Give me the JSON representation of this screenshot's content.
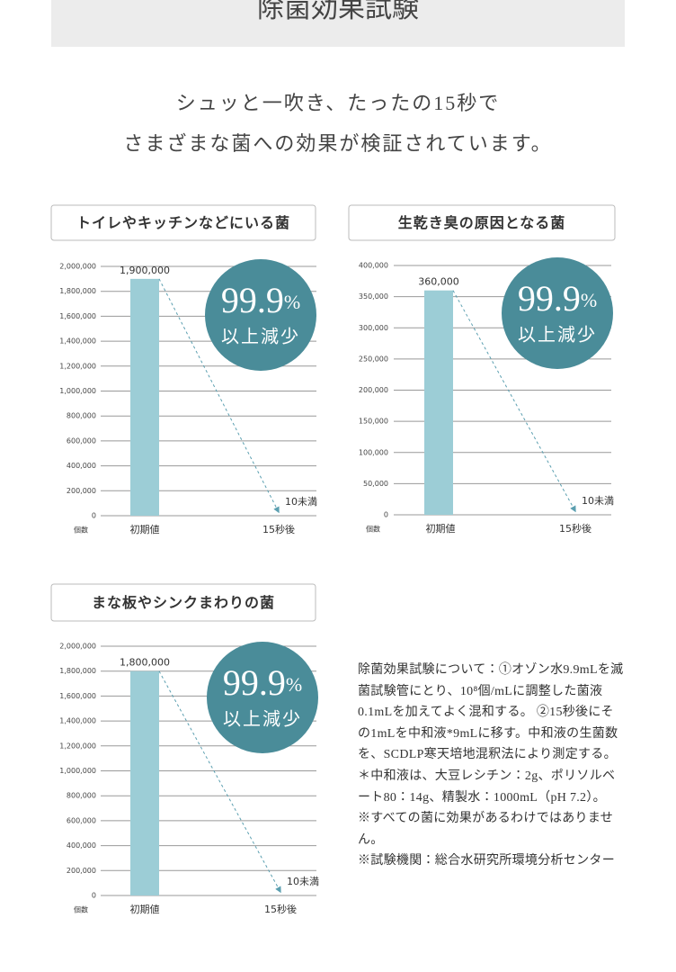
{
  "header": {
    "title": "除菌効果試験"
  },
  "intro": [
    "シュッと一吹き、たったの15秒で",
    "さまざまな菌への効果が検証されています。"
  ],
  "chart_data": [
    {
      "type": "bar",
      "title": "トイレやキッチンなどにいる菌",
      "ylabel": "個数",
      "categories": [
        "初期値",
        "15秒後"
      ],
      "values": [
        1900000,
        10
      ],
      "value_labels": [
        "1,900,000",
        "10未満"
      ],
      "color": "#9ccdd6",
      "grid": true,
      "ylim": [
        0,
        2000000
      ],
      "yticks": [
        {
          "value": 0,
          "label": "0"
        },
        {
          "value": 200000,
          "label": "200,000"
        },
        {
          "value": 400000,
          "label": "400,000"
        },
        {
          "value": 600000,
          "label": "600,000"
        },
        {
          "value": 800000,
          "label": "800,000"
        },
        {
          "value": 1000000,
          "label": "1,000,000"
        },
        {
          "value": 1200000,
          "label": "1,200,000"
        },
        {
          "value": 1400000,
          "label": "1,400,000"
        },
        {
          "value": 1600000,
          "label": "1,600,000"
        },
        {
          "value": 1800000,
          "label": "1,800,000"
        },
        {
          "value": 2000000,
          "label": "2,000,000"
        }
      ],
      "badge_value": "99.9",
      "badge_unit": "%",
      "badge_text": "以上減少",
      "badge_color": "#4a8c99"
    },
    {
      "type": "bar",
      "title": "生乾き臭の原因となる菌",
      "ylabel": "個数",
      "categories": [
        "初期値",
        "15秒後"
      ],
      "values": [
        360000,
        10
      ],
      "value_labels": [
        "360,000",
        "10未満"
      ],
      "color": "#9ccdd6",
      "grid": true,
      "ylim": [
        0,
        400000
      ],
      "yticks": [
        {
          "value": 0,
          "label": "0"
        },
        {
          "value": 50000,
          "label": "50,000"
        },
        {
          "value": 100000,
          "label": "100,000"
        },
        {
          "value": 150000,
          "label": "150,000"
        },
        {
          "value": 200000,
          "label": "200,000"
        },
        {
          "value": 250000,
          "label": "250,000"
        },
        {
          "value": 300000,
          "label": "300,000"
        },
        {
          "value": 350000,
          "label": "350,000"
        },
        {
          "value": 400000,
          "label": "400,000"
        }
      ],
      "badge_value": "99.9",
      "badge_unit": "%",
      "badge_text": "以上減少",
      "badge_color": "#4a8c99"
    },
    {
      "type": "bar",
      "title": "まな板やシンクまわりの菌",
      "ylabel": "個数",
      "categories": [
        "初期値",
        "15秒後"
      ],
      "values": [
        1800000,
        10
      ],
      "value_labels": [
        "1,800,000",
        "10未満"
      ],
      "color": "#9ccdd6",
      "grid": true,
      "ylim": [
        0,
        2000000
      ],
      "yticks": [
        {
          "value": 0,
          "label": "0"
        },
        {
          "value": 200000,
          "label": "200,000"
        },
        {
          "value": 400000,
          "label": "400,000"
        },
        {
          "value": 600000,
          "label": "600,000"
        },
        {
          "value": 800000,
          "label": "800,000"
        },
        {
          "value": 1000000,
          "label": "1,000,000"
        },
        {
          "value": 1200000,
          "label": "1,200,000"
        },
        {
          "value": 1400000,
          "label": "1,400,000"
        },
        {
          "value": 1600000,
          "label": "1,600,000"
        },
        {
          "value": 1800000,
          "label": "1,800,000"
        },
        {
          "value": 2000000,
          "label": "2,000,000"
        }
      ],
      "badge_value": "99.9",
      "badge_unit": "%",
      "badge_text": "以上減少",
      "badge_color": "#4a8c99"
    }
  ],
  "note": [
    "除菌効果試験について：①オゾン水9.9mLを滅菌試験管にとり、10⁸個/mLに調整した菌液0.1mLを加えてよく混和する。 ②15秒後にその1mLを中和液*9mLに移す。中和液の生菌数を、SCDLP寒天培地混釈法により測定する。 ＊中和液は、大豆レシチン：2g、ポリソルベート80：14g、精製水：1000mL（pH 7.2）。",
    "※すべての菌に効果があるわけではありません。",
    "※試験機関：総合水研究所環境分析センター"
  ]
}
